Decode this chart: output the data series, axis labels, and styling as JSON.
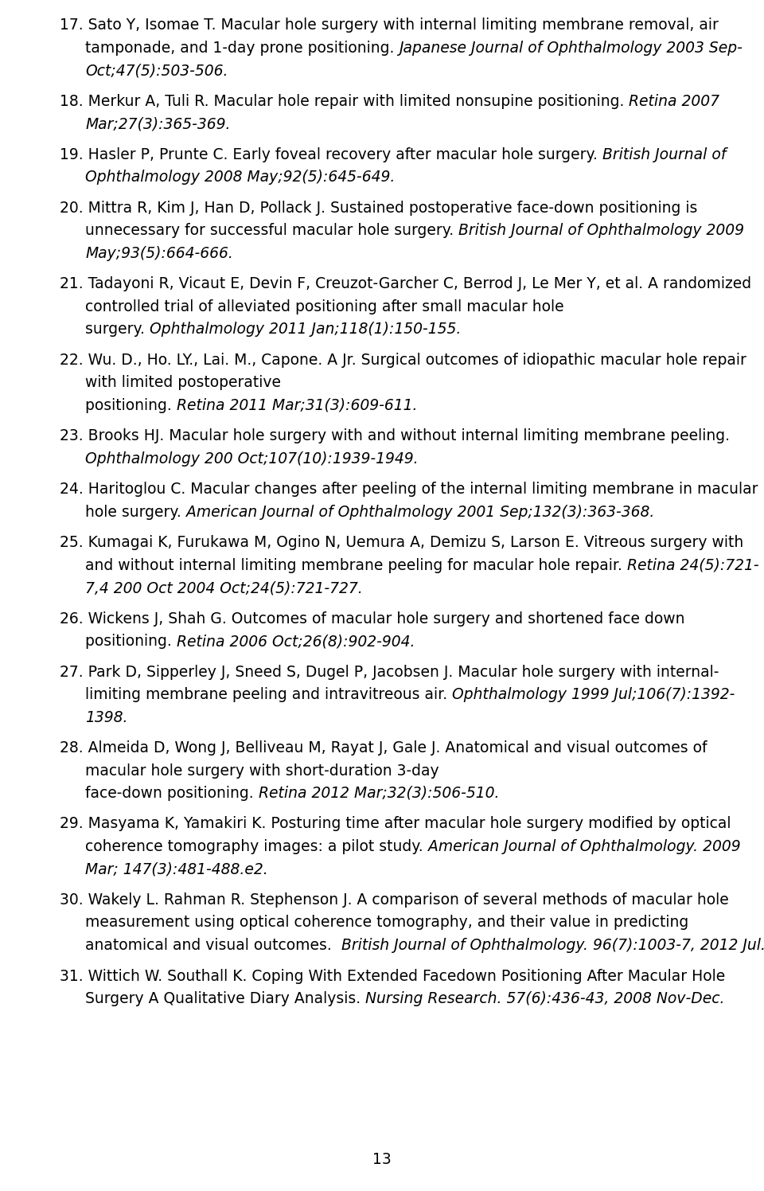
{
  "background_color": "#ffffff",
  "text_color": "#000000",
  "page_number": "13",
  "references_data": [
    {
      "lines": [
        {
          "indent": false,
          "parts": [
            [
              "n",
              "17. Sato Y, Isomae T. Macular hole surgery with internal limiting membrane removal, air"
            ]
          ]
        },
        {
          "indent": true,
          "parts": [
            [
              "n",
              "tamponade, and 1-day prone positioning. "
            ],
            [
              "i",
              "Japanese Journal of Ophthalmology 2003 Sep-"
            ]
          ]
        },
        {
          "indent": true,
          "parts": [
            [
              "i",
              "Oct;47(5):503-506."
            ]
          ]
        }
      ]
    },
    {
      "lines": [
        {
          "indent": false,
          "parts": [
            [
              "n",
              "18. Merkur A, Tuli R. Macular hole repair with limited nonsupine positioning. "
            ],
            [
              "i",
              "Retina 2007"
            ]
          ]
        },
        {
          "indent": true,
          "parts": [
            [
              "i",
              "Mar;27(3):365-369."
            ]
          ]
        }
      ]
    },
    {
      "lines": [
        {
          "indent": false,
          "parts": [
            [
              "n",
              "19. Hasler P, Prunte C. Early foveal recovery after macular hole surgery. "
            ],
            [
              "i",
              "British Journal of"
            ]
          ]
        },
        {
          "indent": true,
          "parts": [
            [
              "i",
              "Ophthalmology 2008 May;92(5):645-649."
            ]
          ]
        }
      ]
    },
    {
      "lines": [
        {
          "indent": false,
          "parts": [
            [
              "n",
              "20. Mittra R, Kim J, Han D, Pollack J. Sustained postoperative face-down positioning is"
            ]
          ]
        },
        {
          "indent": true,
          "parts": [
            [
              "n",
              "unnecessary for successful macular hole surgery. "
            ],
            [
              "i",
              "British Journal of Ophthalmology 2009"
            ]
          ]
        },
        {
          "indent": true,
          "parts": [
            [
              "i",
              "May;93(5):664-666."
            ]
          ]
        }
      ]
    },
    {
      "lines": [
        {
          "indent": false,
          "parts": [
            [
              "n",
              "21. Tadayoni R, Vicaut E, Devin F, Creuzot-Garcher C, Berrod J, Le Mer Y, et al. A randomized"
            ]
          ]
        },
        {
          "indent": true,
          "parts": [
            [
              "n",
              "controlled trial of alleviated positioning after small macular hole"
            ]
          ]
        },
        {
          "indent": true,
          "parts": [
            [
              "n",
              "surgery. "
            ],
            [
              "i",
              "Ophthalmology 2011 Jan;118(1):150-155."
            ]
          ]
        }
      ]
    },
    {
      "lines": [
        {
          "indent": false,
          "parts": [
            [
              "n",
              "22. Wu. D., Ho. LY., Lai. M., Capone. A Jr. Surgical outcomes of idiopathic macular hole repair"
            ]
          ]
        },
        {
          "indent": true,
          "parts": [
            [
              "n",
              "with limited postoperative"
            ]
          ]
        },
        {
          "indent": true,
          "parts": [
            [
              "n",
              "positioning. "
            ],
            [
              "i",
              "Retina 2011 Mar;31(3):609-611."
            ]
          ]
        }
      ]
    },
    {
      "lines": [
        {
          "indent": false,
          "parts": [
            [
              "n",
              "23. Brooks HJ. Macular hole surgery with and without internal limiting membrane peeling."
            ]
          ]
        },
        {
          "indent": true,
          "parts": [
            [
              "i",
              "Ophthalmology 200 Oct;107(10):1939-1949."
            ]
          ]
        }
      ]
    },
    {
      "lines": [
        {
          "indent": false,
          "parts": [
            [
              "n",
              "24. Haritoglou C. Macular changes after peeling of the internal limiting membrane in macular"
            ]
          ]
        },
        {
          "indent": true,
          "parts": [
            [
              "n",
              "hole surgery. "
            ],
            [
              "i",
              "American Journal of Ophthalmology 2001 Sep;132(3):363-368."
            ]
          ]
        }
      ]
    },
    {
      "lines": [
        {
          "indent": false,
          "parts": [
            [
              "n",
              "25. Kumagai K, Furukawa M, Ogino N, Uemura A, Demizu S, Larson E. Vitreous surgery with"
            ]
          ]
        },
        {
          "indent": true,
          "parts": [
            [
              "n",
              "and without internal limiting membrane peeling for macular hole repair. "
            ],
            [
              "i",
              "Retina 24(5):721-"
            ]
          ]
        },
        {
          "indent": true,
          "parts": [
            [
              "i",
              "7,4 200 Oct 2004 Oct;24(5):721-727."
            ]
          ]
        }
      ]
    },
    {
      "lines": [
        {
          "indent": false,
          "parts": [
            [
              "n",
              "26. Wickens J, Shah G. Outcomes of macular hole surgery and shortened face down"
            ]
          ]
        },
        {
          "indent": true,
          "parts": [
            [
              "n",
              "positioning. "
            ],
            [
              "i",
              "Retina 2006 Oct;26(8):902-904."
            ]
          ]
        }
      ]
    },
    {
      "lines": [
        {
          "indent": false,
          "parts": [
            [
              "n",
              "27. Park D, Sipperley J, Sneed S, Dugel P, Jacobsen J. Macular hole surgery with internal-"
            ]
          ]
        },
        {
          "indent": true,
          "parts": [
            [
              "n",
              "limiting membrane peeling and intravitreous air. "
            ],
            [
              "i",
              "Ophthalmology 1999 Jul;106(7):1392-"
            ]
          ]
        },
        {
          "indent": true,
          "parts": [
            [
              "i",
              "1398."
            ]
          ]
        }
      ]
    },
    {
      "lines": [
        {
          "indent": false,
          "parts": [
            [
              "n",
              "28. Almeida D, Wong J, Belliveau M, Rayat J, Gale J. Anatomical and visual outcomes of"
            ]
          ]
        },
        {
          "indent": true,
          "parts": [
            [
              "n",
              "macular hole surgery with short-duration 3-day"
            ]
          ]
        },
        {
          "indent": true,
          "parts": [
            [
              "n",
              "face-down positioning. "
            ],
            [
              "i",
              "Retina 2012 Mar;32(3):506-510."
            ]
          ]
        }
      ]
    },
    {
      "lines": [
        {
          "indent": false,
          "parts": [
            [
              "n",
              "29. Masyama K, Yamakiri K. Posturing time after macular hole surgery modified by optical"
            ]
          ]
        },
        {
          "indent": true,
          "parts": [
            [
              "n",
              "coherence tomography images: a pilot study. "
            ],
            [
              "i",
              "American Journal of Ophthalmology. 2009"
            ]
          ]
        },
        {
          "indent": true,
          "parts": [
            [
              "i",
              "Mar; 147(3):481-488.e2."
            ]
          ]
        }
      ]
    },
    {
      "lines": [
        {
          "indent": false,
          "parts": [
            [
              "n",
              "30. Wakely L. Rahman R. Stephenson J. A comparison of several methods of macular hole"
            ]
          ]
        },
        {
          "indent": true,
          "parts": [
            [
              "n",
              "measurement using optical coherence tomography, and their value in predicting"
            ]
          ]
        },
        {
          "indent": true,
          "parts": [
            [
              "n",
              "anatomical and visual outcomes.  "
            ],
            [
              "i",
              "British Journal of Ophthalmology. 96(7):1003-7, 2012 Jul."
            ]
          ]
        }
      ]
    },
    {
      "lines": [
        {
          "indent": false,
          "parts": [
            [
              "n",
              "31. Wittich W. Southall K. Coping With Extended Facedown Positioning After Macular Hole"
            ]
          ]
        },
        {
          "indent": true,
          "parts": [
            [
              "n",
              "Surgery A Qualitative Diary Analysis. "
            ],
            [
              "i",
              "Nursing Research. 57(6):436-43, 2008 Nov-Dec."
            ]
          ]
        }
      ]
    }
  ]
}
